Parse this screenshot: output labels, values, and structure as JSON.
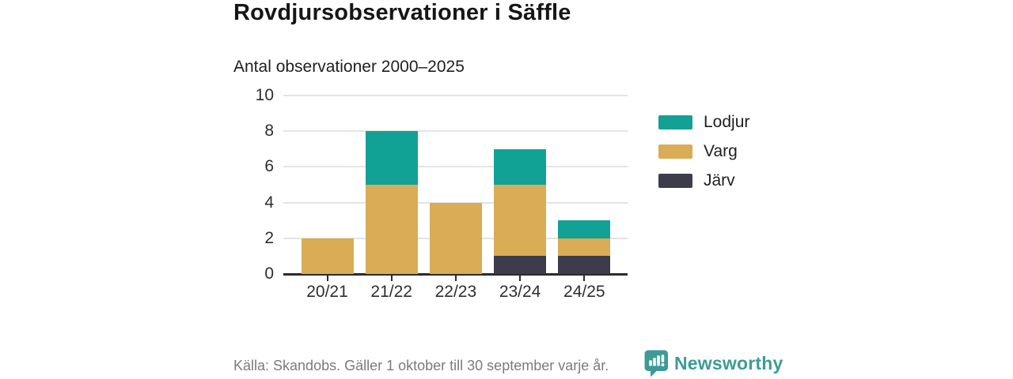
{
  "header": {
    "title": "Rovdjursobservationer i Säffle",
    "subtitle": "Antal observationer 2000–2025"
  },
  "chart_data": {
    "type": "bar",
    "stacked": true,
    "title": "Rovdjursobservationer i Säffle",
    "subtitle": "Antal observationer 2000–2025",
    "xlabel": "",
    "ylabel": "",
    "categories": [
      "20/21",
      "21/22",
      "22/23",
      "23/24",
      "24/25"
    ],
    "series": [
      {
        "name": "Järv",
        "color": "#3d3c4b",
        "values": [
          0,
          0,
          0,
          1,
          1
        ]
      },
      {
        "name": "Varg",
        "color": "#d9ac55",
        "values": [
          2,
          5,
          4,
          4,
          1
        ]
      },
      {
        "name": "Lodjur",
        "color": "#12a195",
        "values": [
          0,
          3,
          0,
          2,
          1
        ]
      }
    ],
    "totals": [
      2,
      8,
      4,
      7,
      3
    ],
    "ylim": [
      0,
      10
    ],
    "yticks": [
      0,
      2,
      4,
      6,
      8,
      10
    ],
    "grid": true,
    "legend_position": "right",
    "legend": [
      {
        "label": "Lodjur",
        "color": "#12a195"
      },
      {
        "label": "Varg",
        "color": "#d9ac55"
      },
      {
        "label": "Järv",
        "color": "#3d3c4b"
      }
    ]
  },
  "footer": {
    "source": "Källa: Skandobs. Gäller 1 oktober till 30 september varje år.",
    "brand": "Newsworthy",
    "brand_color": "#3c9c95"
  },
  "colors": {
    "lodjur": "#12a195",
    "varg": "#d9ac55",
    "jarv": "#3d3c4b",
    "grid": "#e4e4e4",
    "axis": "#2b2b2b",
    "text": "#161616",
    "muted": "#7b7b7b"
  }
}
